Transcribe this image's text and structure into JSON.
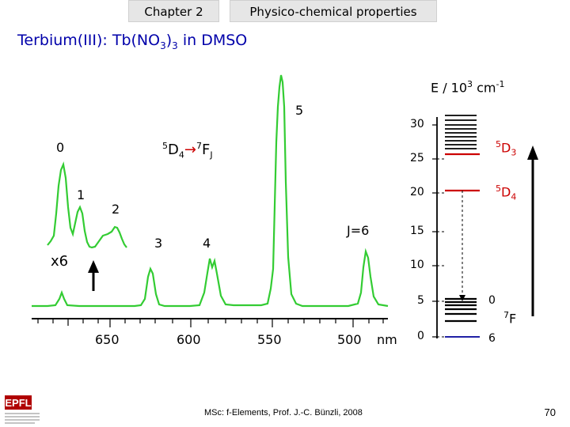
{
  "header": {
    "chapter": "Chapter 2",
    "topic": "Physico-chemical properties"
  },
  "title": {
    "prefix": "Terbium(III): Tb(NO",
    "sub1": "3",
    "mid": ")",
    "sub2": "3",
    "suffix": " in DMSO"
  },
  "spectrum": {
    "transition": {
      "s1": "5",
      "level1": "D",
      "sub1": "4",
      "arrow": "→",
      "s2": "7",
      "level2": "F",
      "sub2": "J"
    },
    "peak_labels": [
      "0",
      "1",
      "2",
      "3",
      "4",
      "5",
      "J=6"
    ],
    "magnification": "x6",
    "x_ticks": [
      "650",
      "600",
      "550",
      "500"
    ],
    "x_unit": "nm"
  },
  "energy_diagram": {
    "axis_label": {
      "pre": "E / 10",
      "sup1": "3",
      "mid": " cm",
      "sup2": "-1"
    },
    "ticks": [
      "30",
      "25",
      "20",
      "15",
      "10",
      "5",
      "0"
    ],
    "level_5D3": {
      "sup": "5",
      "main": "D",
      "sub": "3"
    },
    "level_5D4": {
      "sup": "5",
      "main": "D",
      "sub": "4"
    },
    "level_7F": {
      "sup": "7",
      "main": "F"
    },
    "j_top": "0",
    "j_bottom": "6",
    "colors": {
      "excited": "#cc0000",
      "ground": "#000099",
      "spectrum": "#33cc33"
    }
  },
  "footer": {
    "text": "MSc: f-Elements,  Prof. J.-C. Bünzli, 2008",
    "page": "70"
  },
  "logo": {
    "text": "EPFL"
  }
}
